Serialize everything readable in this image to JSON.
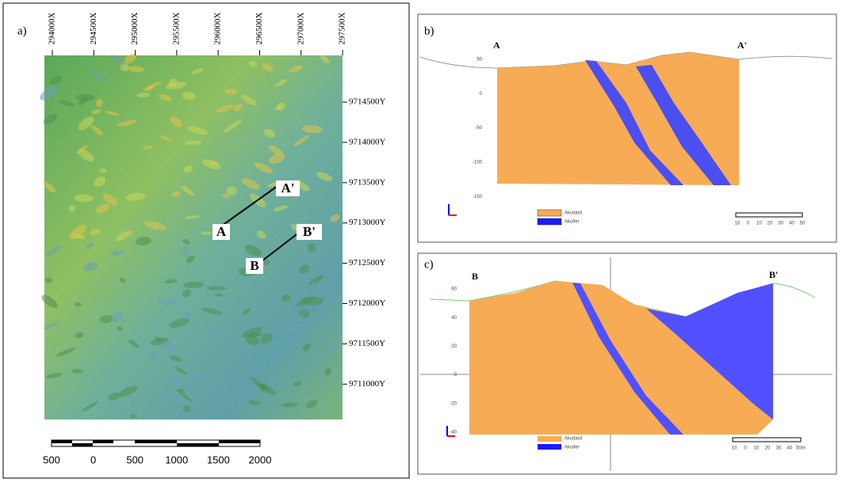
{
  "panel_a": {
    "label": "a)",
    "x_coords": [
      "294000X",
      "294500X",
      "295000X",
      "295500X",
      "296000X",
      "296500X",
      "297000X",
      "297500X"
    ],
    "y_coords": [
      "9714500Y",
      "9714000Y",
      "9713500Y",
      "9713000Y",
      "9712500Y",
      "9712000Y",
      "9711500Y",
      "9711000Y"
    ],
    "points": [
      "A",
      "A'",
      "B",
      "B'"
    ],
    "scale_labels": [
      "500",
      "0",
      "500",
      "1000",
      "1500",
      "2000"
    ]
  },
  "panel_b": {
    "label": "b)",
    "start": "A",
    "end": "A'",
    "depth_labels": [
      "50",
      "0",
      "-50",
      "-100",
      "-150"
    ],
    "legend": [
      "Akuitard",
      "Akuifer"
    ],
    "scale_labels": [
      "10",
      "0",
      "10",
      "20",
      "30",
      "40",
      "50"
    ]
  },
  "panel_c": {
    "label": "c)",
    "start": "B",
    "end": "B'",
    "depth_labels": [
      "60",
      "40",
      "20",
      "0",
      "-20",
      "-40"
    ],
    "legend": [
      "Akuitard",
      "Akuifer"
    ],
    "scale_labels": [
      "10",
      "0",
      "10",
      "20",
      "30",
      "40",
      "50m"
    ]
  }
}
